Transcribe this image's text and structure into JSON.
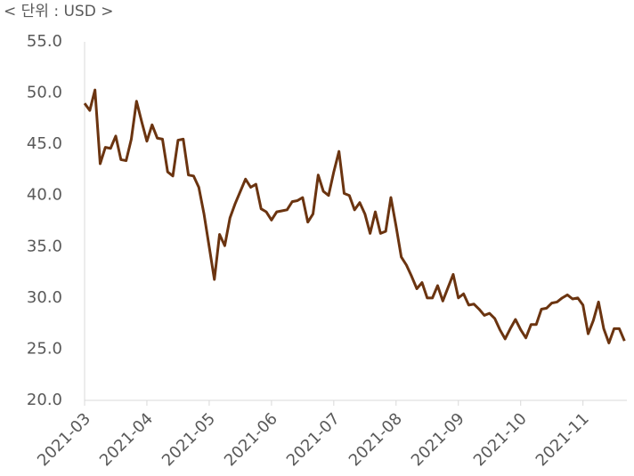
{
  "chart_data": {
    "type": "line",
    "title": "< 단위 : USD >",
    "categories": [
      "2021-03",
      null,
      null,
      null,
      null,
      null,
      null,
      null,
      null,
      null,
      null,
      null,
      "2021-04",
      null,
      null,
      null,
      null,
      null,
      null,
      null,
      null,
      null,
      null,
      null,
      "2021-05",
      null,
      null,
      null,
      null,
      null,
      null,
      null,
      null,
      null,
      null,
      null,
      "2021-06",
      null,
      null,
      null,
      null,
      null,
      null,
      null,
      null,
      null,
      null,
      null,
      "2021-07",
      null,
      null,
      null,
      null,
      null,
      null,
      null,
      null,
      null,
      null,
      null,
      "2021-08",
      null,
      null,
      null,
      null,
      null,
      null,
      null,
      null,
      null,
      null,
      null,
      "2021-09",
      null,
      null,
      null,
      null,
      null,
      null,
      null,
      null,
      null,
      null,
      null,
      "2021-10",
      null,
      null,
      null,
      null,
      null,
      null,
      null,
      null,
      null,
      null,
      null,
      "2021-11",
      null,
      null,
      null,
      null,
      null,
      null,
      null,
      null
    ],
    "values": [
      49.0,
      48.3,
      50.3,
      43.1,
      44.7,
      44.6,
      45.8,
      43.5,
      43.4,
      45.5,
      49.2,
      47.2,
      45.3,
      46.9,
      45.6,
      45.5,
      42.3,
      41.9,
      45.4,
      45.5,
      42.0,
      41.9,
      40.8,
      38.2,
      35.0,
      31.8,
      36.2,
      35.1,
      37.8,
      39.2,
      40.4,
      41.6,
      40.8,
      41.1,
      38.7,
      38.4,
      37.6,
      38.4,
      38.5,
      38.6,
      39.4,
      39.5,
      39.8,
      37.4,
      38.2,
      42.0,
      40.4,
      40.0,
      42.3,
      44.3,
      40.2,
      40.0,
      38.6,
      39.3,
      38.2,
      36.3,
      38.4,
      36.3,
      36.5,
      39.8,
      37.0,
      34.0,
      33.2,
      32.1,
      30.9,
      31.5,
      30.0,
      30.0,
      31.2,
      29.7,
      31.0,
      32.3,
      30.0,
      30.4,
      29.3,
      29.4,
      28.9,
      28.3,
      28.5,
      28.0,
      26.9,
      26.0,
      27.0,
      27.9,
      26.9,
      26.1,
      27.4,
      27.4,
      28.9,
      29.0,
      29.5,
      29.6,
      30.0,
      30.3,
      29.9,
      30.0,
      29.3,
      26.5,
      27.8,
      29.6,
      27.0,
      25.6,
      27.0,
      27.0,
      25.8
    ],
    "color": "#6b3410",
    "ylim": [
      20,
      55
    ],
    "yticks": [
      {
        "value": 20,
        "label": "20.0"
      },
      {
        "value": 25,
        "label": "25.0"
      },
      {
        "value": 30,
        "label": "30.0"
      },
      {
        "value": 35,
        "label": "35.0"
      },
      {
        "value": 40,
        "label": "40.0"
      },
      {
        "value": 45,
        "label": "45.0"
      },
      {
        "value": 50,
        "label": "50.0"
      },
      {
        "value": 55,
        "label": "55.0"
      }
    ],
    "grid": false
  }
}
